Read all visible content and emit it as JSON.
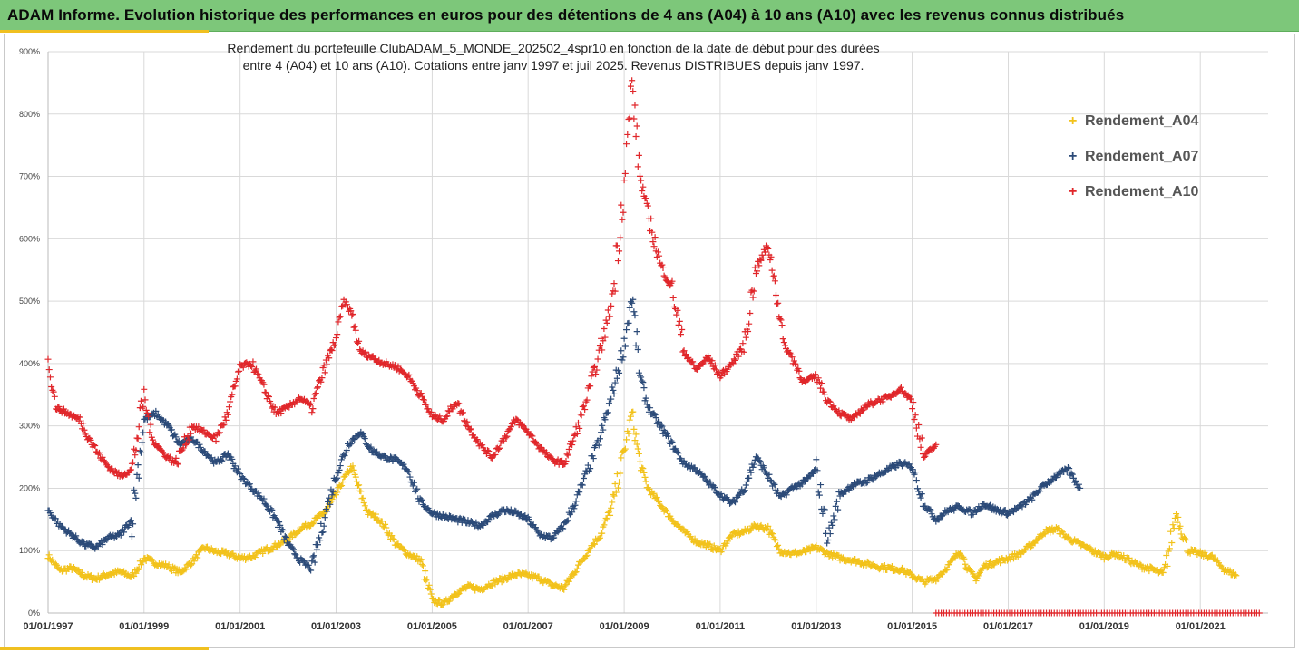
{
  "header": {
    "title": "ADAM Informe. Evolution historique des performances en euros pour des détentions de 4 ans (A04) à 10 ans (A10) avec les revenus connus distribués"
  },
  "colors": {
    "header_bg": "#7dc77a",
    "accent": "#f0c020",
    "grid": "#d9d9d9"
  },
  "chart_data": {
    "type": "scatter",
    "title": "Rendement du portefeuille ClubADAM_5_MONDE_202502_4spr10  en fonction de la date de début pour des durées",
    "subtitle": "entre 4 (A04) et 10 ans (A10). Cotations entre janv 1997 et juil 2025. Revenus DISTRIBUES depuis janv 1997.",
    "x_axis": {
      "type": "date",
      "min": "1997-01-01",
      "max": "2022-06-01",
      "ticks": [
        "01/01/1997",
        "01/01/1999",
        "01/01/2001",
        "01/01/2003",
        "01/01/2005",
        "01/01/2007",
        "01/01/2009",
        "01/01/2011",
        "01/01/2013",
        "01/01/2015",
        "01/01/2017",
        "01/01/2019",
        "01/01/2021"
      ]
    },
    "y_axis": {
      "min": 0,
      "max": 900,
      "ticks": [
        "0%",
        "100%",
        "200%",
        "300%",
        "400%",
        "500%",
        "600%",
        "700%",
        "800%",
        "900%"
      ]
    },
    "grid": true,
    "legend_position": "right",
    "series": [
      {
        "name": "Rendement_A04",
        "color": "#f2c21b",
        "points": [
          [
            "1997-01-01",
            92
          ],
          [
            "1997-04-01",
            68
          ],
          [
            "1997-07-01",
            72
          ],
          [
            "1997-10-01",
            60
          ],
          [
            "1998-01-01",
            55
          ],
          [
            "1998-04-01",
            62
          ],
          [
            "1998-07-01",
            66
          ],
          [
            "1998-10-01",
            58
          ],
          [
            "1999-01-01",
            88
          ],
          [
            "1999-04-01",
            80
          ],
          [
            "1999-07-01",
            75
          ],
          [
            "1999-10-01",
            65
          ],
          [
            "2000-01-01",
            82
          ],
          [
            "2000-04-01",
            105
          ],
          [
            "2000-07-01",
            98
          ],
          [
            "2000-10-01",
            95
          ],
          [
            "2001-01-01",
            88
          ],
          [
            "2001-04-01",
            90
          ],
          [
            "2001-07-01",
            100
          ],
          [
            "2001-10-01",
            108
          ],
          [
            "2002-01-01",
            118
          ],
          [
            "2002-04-01",
            135
          ],
          [
            "2002-07-01",
            145
          ],
          [
            "2002-10-01",
            160
          ],
          [
            "2003-01-01",
            190
          ],
          [
            "2003-03-01",
            215
          ],
          [
            "2003-05-01",
            235
          ],
          [
            "2003-07-01",
            195
          ],
          [
            "2003-09-01",
            160
          ],
          [
            "2003-11-01",
            155
          ],
          [
            "2004-01-01",
            140
          ],
          [
            "2004-04-01",
            110
          ],
          [
            "2004-07-01",
            95
          ],
          [
            "2004-10-01",
            85
          ],
          [
            "2005-01-01",
            20
          ],
          [
            "2005-04-01",
            15
          ],
          [
            "2005-07-01",
            32
          ],
          [
            "2005-10-01",
            42
          ],
          [
            "2006-01-01",
            38
          ],
          [
            "2006-04-01",
            48
          ],
          [
            "2006-07-01",
            55
          ],
          [
            "2006-10-01",
            62
          ],
          [
            "2007-01-01",
            60
          ],
          [
            "2007-04-01",
            55
          ],
          [
            "2007-07-01",
            45
          ],
          [
            "2007-10-01",
            40
          ],
          [
            "2008-01-01",
            70
          ],
          [
            "2008-04-01",
            100
          ],
          [
            "2008-07-01",
            125
          ],
          [
            "2008-10-01",
            170
          ],
          [
            "2009-01-01",
            260
          ],
          [
            "2009-03-01",
            320
          ],
          [
            "2009-05-01",
            240
          ],
          [
            "2009-07-01",
            200
          ],
          [
            "2009-10-01",
            175
          ],
          [
            "2010-01-01",
            150
          ],
          [
            "2010-04-01",
            130
          ],
          [
            "2010-07-01",
            115
          ],
          [
            "2010-10-01",
            108
          ],
          [
            "2011-01-01",
            100
          ],
          [
            "2011-04-01",
            125
          ],
          [
            "2011-07-01",
            130
          ],
          [
            "2011-10-01",
            140
          ],
          [
            "2012-01-01",
            135
          ],
          [
            "2012-04-01",
            100
          ],
          [
            "2012-07-01",
            95
          ],
          [
            "2012-10-01",
            98
          ],
          [
            "2013-01-01",
            105
          ],
          [
            "2013-04-01",
            95
          ],
          [
            "2013-07-01",
            88
          ],
          [
            "2013-10-01",
            85
          ],
          [
            "2014-01-01",
            80
          ],
          [
            "2014-04-01",
            75
          ],
          [
            "2014-07-01",
            72
          ],
          [
            "2014-10-01",
            70
          ],
          [
            "2015-01-01",
            60
          ],
          [
            "2015-04-01",
            50
          ],
          [
            "2015-07-01",
            55
          ],
          [
            "2015-10-01",
            75
          ],
          [
            "2016-01-01",
            100
          ],
          [
            "2016-03-01",
            70
          ],
          [
            "2016-05-01",
            55
          ],
          [
            "2016-07-01",
            75
          ],
          [
            "2016-10-01",
            82
          ],
          [
            "2017-01-01",
            88
          ],
          [
            "2017-04-01",
            95
          ],
          [
            "2017-07-01",
            110
          ],
          [
            "2017-10-01",
            130
          ],
          [
            "2018-01-01",
            135
          ],
          [
            "2018-04-01",
            120
          ],
          [
            "2018-07-01",
            110
          ],
          [
            "2018-10-01",
            100
          ],
          [
            "2019-01-01",
            90
          ],
          [
            "2019-04-01",
            95
          ],
          [
            "2019-07-01",
            85
          ],
          [
            "2019-10-01",
            75
          ],
          [
            "2020-01-01",
            70
          ],
          [
            "2020-04-01",
            62
          ],
          [
            "2020-07-01",
            160
          ],
          [
            "2020-10-01",
            100
          ],
          [
            "2021-01-01",
            95
          ],
          [
            "2021-04-01",
            90
          ],
          [
            "2021-07-01",
            70
          ],
          [
            "2021-10-01",
            60
          ]
        ]
      },
      {
        "name": "Rendement_A07",
        "color": "#2b4a78",
        "points": [
          [
            "1997-01-01",
            165
          ],
          [
            "1997-04-01",
            140
          ],
          [
            "1997-07-01",
            125
          ],
          [
            "1997-10-01",
            110
          ],
          [
            "1998-01-01",
            105
          ],
          [
            "1998-04-01",
            120
          ],
          [
            "1998-07-01",
            125
          ],
          [
            "1998-10-01",
            150
          ],
          [
            "1999-01-01",
            310
          ],
          [
            "1999-04-01",
            320
          ],
          [
            "1999-07-01",
            300
          ],
          [
            "1999-10-01",
            270
          ],
          [
            "2000-01-01",
            280
          ],
          [
            "2000-04-01",
            260
          ],
          [
            "2000-07-01",
            240
          ],
          [
            "2000-10-01",
            255
          ],
          [
            "2001-01-01",
            220
          ],
          [
            "2001-04-01",
            200
          ],
          [
            "2001-07-01",
            180
          ],
          [
            "2001-10-01",
            150
          ],
          [
            "2002-01-01",
            110
          ],
          [
            "2002-04-01",
            85
          ],
          [
            "2002-07-01",
            70
          ],
          [
            "2002-10-01",
            150
          ],
          [
            "2003-01-01",
            220
          ],
          [
            "2003-04-01",
            270
          ],
          [
            "2003-07-01",
            290
          ],
          [
            "2003-10-01",
            260
          ],
          [
            "2004-01-01",
            250
          ],
          [
            "2004-04-01",
            245
          ],
          [
            "2004-07-01",
            230
          ],
          [
            "2004-10-01",
            180
          ],
          [
            "2005-01-01",
            160
          ],
          [
            "2005-04-01",
            155
          ],
          [
            "2005-07-01",
            150
          ],
          [
            "2005-10-01",
            145
          ],
          [
            "2006-01-01",
            140
          ],
          [
            "2006-04-01",
            155
          ],
          [
            "2006-07-01",
            165
          ],
          [
            "2006-10-01",
            160
          ],
          [
            "2007-01-01",
            150
          ],
          [
            "2007-04-01",
            125
          ],
          [
            "2007-07-01",
            120
          ],
          [
            "2007-10-01",
            140
          ],
          [
            "2008-01-01",
            180
          ],
          [
            "2008-04-01",
            230
          ],
          [
            "2008-07-01",
            280
          ],
          [
            "2008-10-01",
            350
          ],
          [
            "2009-01-01",
            430
          ],
          [
            "2009-03-01",
            510
          ],
          [
            "2009-05-01",
            380
          ],
          [
            "2009-07-01",
            330
          ],
          [
            "2009-10-01",
            300
          ],
          [
            "2010-01-01",
            270
          ],
          [
            "2010-04-01",
            240
          ],
          [
            "2010-07-01",
            230
          ],
          [
            "2010-10-01",
            210
          ],
          [
            "2011-01-01",
            190
          ],
          [
            "2011-04-01",
            175
          ],
          [
            "2011-07-01",
            200
          ],
          [
            "2011-10-01",
            250
          ],
          [
            "2012-01-01",
            220
          ],
          [
            "2012-04-01",
            185
          ],
          [
            "2012-07-01",
            200
          ],
          [
            "2012-10-01",
            210
          ],
          [
            "2013-01-01",
            230
          ],
          [
            "2013-04-01",
            120
          ],
          [
            "2013-07-01",
            190
          ],
          [
            "2013-10-01",
            205
          ],
          [
            "2014-01-01",
            210
          ],
          [
            "2014-04-01",
            220
          ],
          [
            "2014-07-01",
            230
          ],
          [
            "2014-10-01",
            240
          ],
          [
            "2015-01-01",
            235
          ],
          [
            "2015-04-01",
            175
          ],
          [
            "2015-07-01",
            150
          ],
          [
            "2015-10-01",
            165
          ],
          [
            "2016-01-01",
            170
          ],
          [
            "2016-04-01",
            160
          ],
          [
            "2016-07-01",
            175
          ],
          [
            "2016-10-01",
            165
          ],
          [
            "2017-01-01",
            160
          ],
          [
            "2017-04-01",
            170
          ],
          [
            "2017-07-01",
            185
          ],
          [
            "2017-10-01",
            205
          ],
          [
            "2018-01-01",
            220
          ],
          [
            "2018-04-01",
            230
          ],
          [
            "2018-07-01",
            200
          ]
        ]
      },
      {
        "name": "Rendement_A10",
        "color": "#e0262a",
        "points": [
          [
            "1997-01-01",
            410
          ],
          [
            "1997-03-01",
            330
          ],
          [
            "1997-06-01",
            320
          ],
          [
            "1997-09-01",
            310
          ],
          [
            "1998-01-01",
            260
          ],
          [
            "1998-04-01",
            235
          ],
          [
            "1998-07-01",
            220
          ],
          [
            "1998-10-01",
            230
          ],
          [
            "1999-01-01",
            350
          ],
          [
            "1999-03-01",
            280
          ],
          [
            "1999-06-01",
            255
          ],
          [
            "1999-09-01",
            240
          ],
          [
            "2000-01-01",
            300
          ],
          [
            "2000-04-01",
            290
          ],
          [
            "2000-07-01",
            280
          ],
          [
            "2000-10-01",
            320
          ],
          [
            "2001-01-01",
            395
          ],
          [
            "2001-04-01",
            400
          ],
          [
            "2001-07-01",
            360
          ],
          [
            "2001-10-01",
            320
          ],
          [
            "2002-01-01",
            330
          ],
          [
            "2002-04-01",
            345
          ],
          [
            "2002-07-01",
            330
          ],
          [
            "2002-10-01",
            390
          ],
          [
            "2003-01-01",
            440
          ],
          [
            "2003-03-01",
            500
          ],
          [
            "2003-05-01",
            480
          ],
          [
            "2003-07-01",
            420
          ],
          [
            "2003-10-01",
            410
          ],
          [
            "2004-01-01",
            400
          ],
          [
            "2004-04-01",
            395
          ],
          [
            "2004-07-01",
            380
          ],
          [
            "2004-10-01",
            350
          ],
          [
            "2005-01-01",
            315
          ],
          [
            "2005-04-01",
            310
          ],
          [
            "2005-07-01",
            340
          ],
          [
            "2005-10-01",
            300
          ],
          [
            "2006-01-01",
            270
          ],
          [
            "2006-04-01",
            250
          ],
          [
            "2006-07-01",
            280
          ],
          [
            "2006-10-01",
            310
          ],
          [
            "2007-01-01",
            290
          ],
          [
            "2007-04-01",
            265
          ],
          [
            "2007-07-01",
            245
          ],
          [
            "2007-10-01",
            240
          ],
          [
            "2008-01-01",
            290
          ],
          [
            "2008-04-01",
            350
          ],
          [
            "2008-07-01",
            420
          ],
          [
            "2008-10-01",
            500
          ],
          [
            "2009-01-01",
            690
          ],
          [
            "2009-03-01",
            850
          ],
          [
            "2009-05-01",
            700
          ],
          [
            "2009-07-01",
            640
          ],
          [
            "2009-10-01",
            560
          ],
          [
            "2010-01-01",
            520
          ],
          [
            "2010-04-01",
            420
          ],
          [
            "2010-07-01",
            390
          ],
          [
            "2010-10-01",
            410
          ],
          [
            "2011-01-01",
            380
          ],
          [
            "2011-04-01",
            400
          ],
          [
            "2011-07-01",
            430
          ],
          [
            "2011-10-01",
            550
          ],
          [
            "2012-01-01",
            590
          ],
          [
            "2012-03-01",
            520
          ],
          [
            "2012-05-01",
            430
          ],
          [
            "2012-07-01",
            410
          ],
          [
            "2012-10-01",
            370
          ],
          [
            "2013-01-01",
            380
          ],
          [
            "2013-04-01",
            340
          ],
          [
            "2013-07-01",
            320
          ],
          [
            "2013-10-01",
            310
          ],
          [
            "2014-01-01",
            330
          ],
          [
            "2014-04-01",
            340
          ],
          [
            "2014-07-01",
            345
          ],
          [
            "2014-10-01",
            360
          ],
          [
            "2015-01-01",
            340
          ],
          [
            "2015-04-01",
            250
          ],
          [
            "2015-07-01",
            270
          ]
        ]
      },
      {
        "color": "#e0262a",
        "points_range": {
          "from": "2015-07-01",
          "to": "2022-04-01",
          "step_days": 20,
          "value": 0
        }
      }
    ]
  }
}
